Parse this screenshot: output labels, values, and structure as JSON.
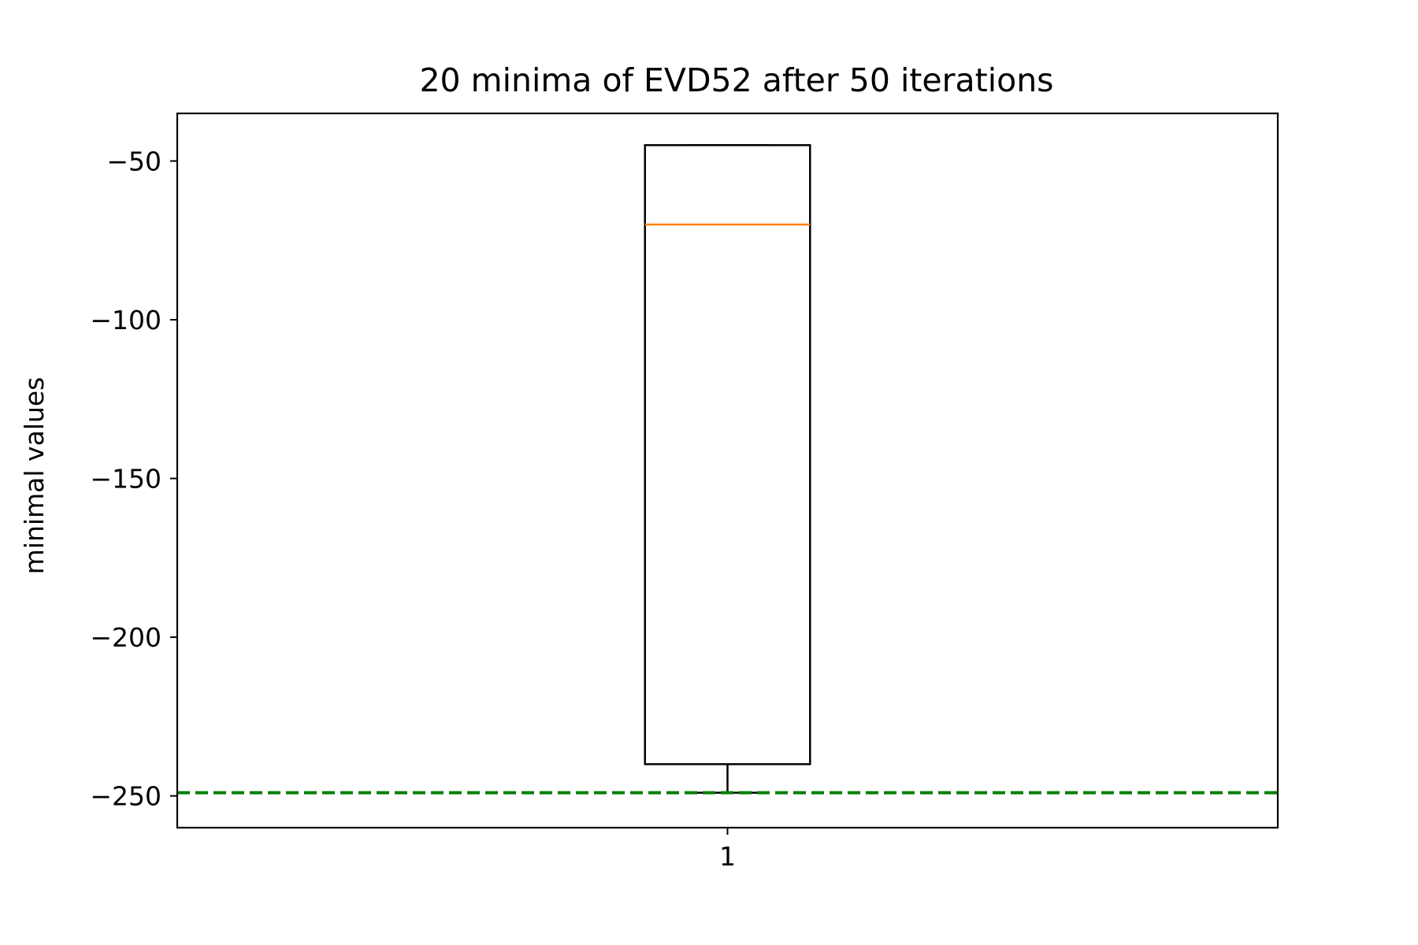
{
  "chart_data": {
    "type": "boxplot",
    "title": "20 minima of EVD52 after 50 iterations",
    "xlabel": "",
    "ylabel": "minimal values",
    "categories": [
      "1"
    ],
    "boxes": [
      {
        "category": "1",
        "whisker_low": -249,
        "q1": -240,
        "median": -70,
        "q3": -45,
        "whisker_high": -45
      }
    ],
    "reference_line": {
      "y": -249,
      "style": "dashed",
      "color": "#007f00"
    },
    "yticks": [
      -50,
      -100,
      -150,
      -200,
      -250
    ],
    "ytick_labels": [
      "−50",
      "−100",
      "−150",
      "−200",
      "−250"
    ],
    "ylim": [
      -260,
      -35
    ],
    "grid": false,
    "colors": {
      "box": "#000000",
      "median": "#ff7f0e",
      "reference": "#007f00"
    }
  }
}
